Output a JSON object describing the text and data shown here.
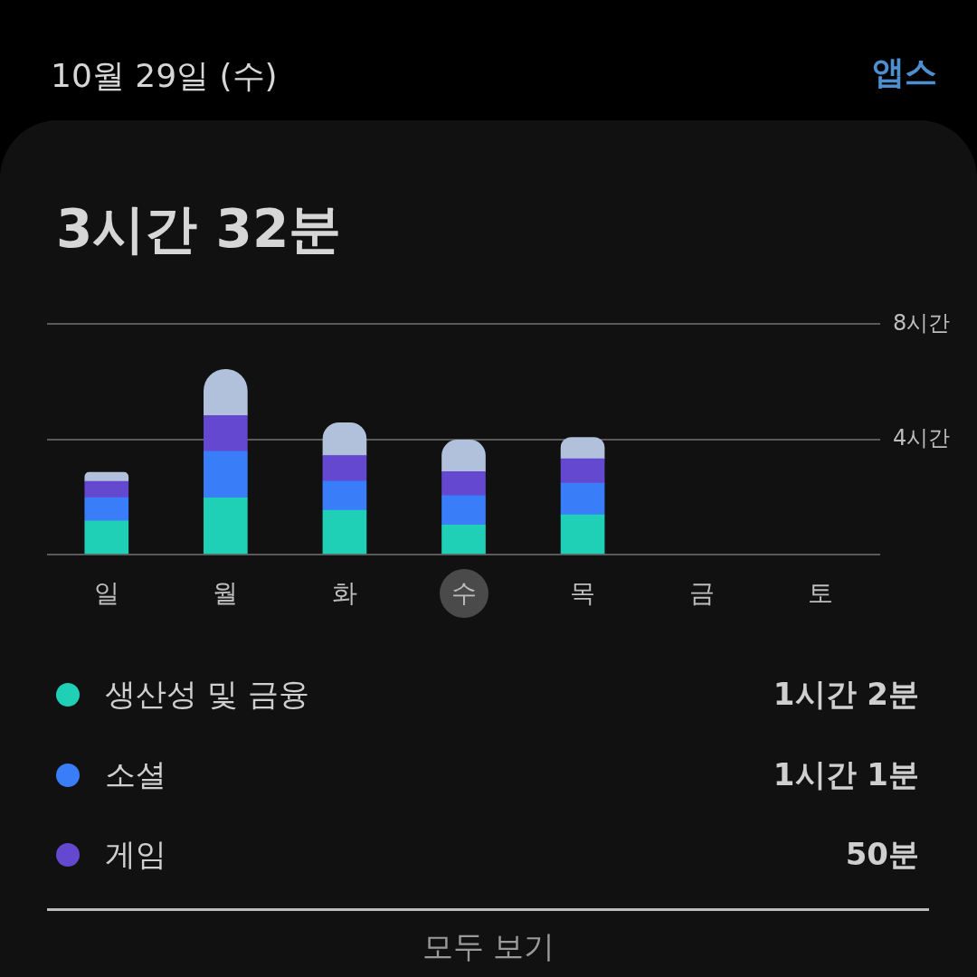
{
  "chart_data": {
    "type": "bar",
    "title": "10월 29일 (수)",
    "subtitle": "3시간 32분",
    "categories": [
      "일",
      "월",
      "화",
      "수",
      "목",
      "금",
      "토"
    ],
    "series": [
      {
        "name": "생산성 및 금융",
        "color": "#1fd0b6",
        "values": [
          1.17,
          1.97,
          1.54,
          1.03,
          1.38,
          null,
          null
        ]
      },
      {
        "name": "소셜",
        "color": "#3a7df9",
        "values": [
          0.81,
          1.62,
          1.01,
          1.02,
          1.1,
          null,
          null
        ]
      },
      {
        "name": "게임",
        "color": "#6449d0",
        "values": [
          0.56,
          1.24,
          0.89,
          0.83,
          0.85,
          null,
          null
        ]
      },
      {
        "color": "#b2c1db",
        "values": [
          0.32,
          1.6,
          1.14,
          1.1,
          0.74,
          null,
          null
        ]
      }
    ],
    "stacked": true,
    "ylim": [
      0,
      8
    ],
    "yticks": [
      {
        "value": 0,
        "label": null
      },
      {
        "value": 4,
        "label": "4시간"
      },
      {
        "value": 8,
        "label": "8시간"
      }
    ],
    "grid": "y",
    "legend": "bottom",
    "annotations": [
      "앱스",
      "1시간 2분",
      "1시간 1분",
      "50분",
      "모두 보기"
    ]
  }
}
